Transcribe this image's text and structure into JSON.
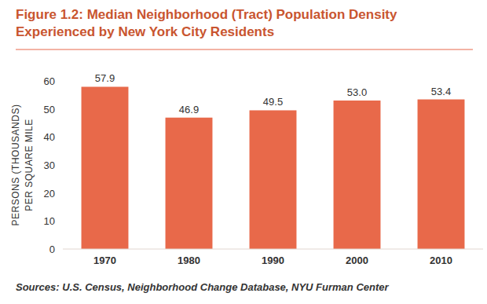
{
  "chart_data": {
    "type": "bar",
    "title": "Figure 1.2: Median Neighborhood (Tract) Population Density Experienced by New York City Residents",
    "y_label": "PERSONS (THOUSANDS) PER SQUARE MILE",
    "annotations": [
      "Sources: U.S. Census, Neighborhood Change Database, NYU Furman Center"
    ],
    "categories": [
      "1970",
      "1980",
      "1990",
      "2000",
      "2010"
    ],
    "values": [
      57.9,
      46.9,
      49.5,
      53.0,
      53.4
    ],
    "value_labels": [
      "57.9",
      "46.9",
      "49.5",
      "53.0",
      "53.4"
    ],
    "color": "#e8694a",
    "ylim": [
      0,
      60
    ],
    "yticks": [
      0,
      10,
      20,
      30,
      40,
      50,
      60
    ],
    "grid": false,
    "data_labels": true
  }
}
